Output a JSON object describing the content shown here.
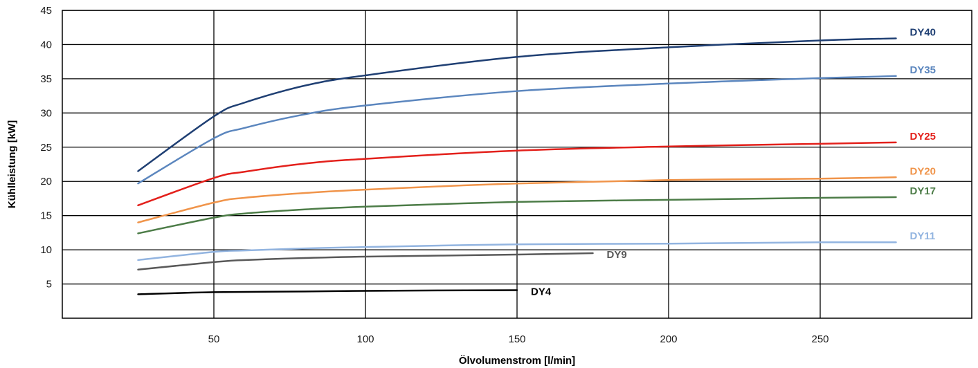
{
  "chart_data": {
    "type": "line",
    "xlabel": "Ölvolumenstrom [l/min]",
    "ylabel": "Kühlleistung [kW]",
    "xlim": [
      0,
      300
    ],
    "ylim": [
      0,
      45
    ],
    "x_ticks": [
      50,
      100,
      150,
      200,
      250
    ],
    "y_ticks": [
      5,
      10,
      15,
      20,
      25,
      30,
      35,
      40,
      45
    ],
    "x_tick_labels": [
      "50",
      "100",
      "150",
      "200",
      "250"
    ],
    "y_tick_labels": [
      "5",
      "10",
      "15",
      "20",
      "25",
      "30",
      "35",
      "40",
      "45"
    ],
    "grid": true,
    "legend": "inline labels at line ends",
    "series": [
      {
        "name": "DY40",
        "color": "#1f3f73",
        "x": [
          25,
          50,
          60,
          80,
          100,
          150,
          200,
          250,
          275
        ],
        "y": [
          21.5,
          29.5,
          31.5,
          34.0,
          35.5,
          38.2,
          39.6,
          40.6,
          40.9
        ]
      },
      {
        "name": "DY35",
        "color": "#5b86be",
        "x": [
          25,
          50,
          60,
          80,
          100,
          150,
          200,
          250,
          275
        ],
        "y": [
          19.7,
          26.3,
          27.8,
          29.8,
          31.1,
          33.2,
          34.3,
          35.1,
          35.4
        ]
      },
      {
        "name": "DY25",
        "color": "#e3201b",
        "x": [
          25,
          50,
          60,
          80,
          100,
          150,
          200,
          250,
          275
        ],
        "y": [
          16.5,
          20.5,
          21.4,
          22.6,
          23.3,
          24.5,
          25.1,
          25.5,
          25.7
        ]
      },
      {
        "name": "DY20",
        "color": "#f0944a",
        "x": [
          25,
          50,
          60,
          80,
          100,
          150,
          200,
          250,
          275
        ],
        "y": [
          14.0,
          16.9,
          17.6,
          18.3,
          18.8,
          19.7,
          20.2,
          20.4,
          20.6
        ]
      },
      {
        "name": "DY17",
        "color": "#4c7c47",
        "x": [
          25,
          50,
          60,
          80,
          100,
          150,
          200,
          250,
          275
        ],
        "y": [
          12.4,
          14.7,
          15.3,
          15.9,
          16.3,
          17.0,
          17.3,
          17.6,
          17.7
        ]
      },
      {
        "name": "DY11",
        "color": "#92b4e0",
        "x": [
          25,
          50,
          60,
          80,
          100,
          150,
          200,
          250,
          275
        ],
        "y": [
          8.5,
          9.7,
          9.9,
          10.2,
          10.4,
          10.8,
          10.9,
          11.1,
          11.1
        ]
      },
      {
        "name": "DY9",
        "color": "#595959",
        "x": [
          25,
          50,
          60,
          80,
          100,
          150,
          175
        ],
        "y": [
          7.1,
          8.2,
          8.5,
          8.8,
          9.0,
          9.3,
          9.5
        ]
      },
      {
        "name": "DY4",
        "color": "#000000",
        "x": [
          25,
          50,
          80,
          100,
          150
        ],
        "y": [
          3.5,
          3.8,
          3.9,
          4.0,
          4.1
        ]
      }
    ]
  }
}
